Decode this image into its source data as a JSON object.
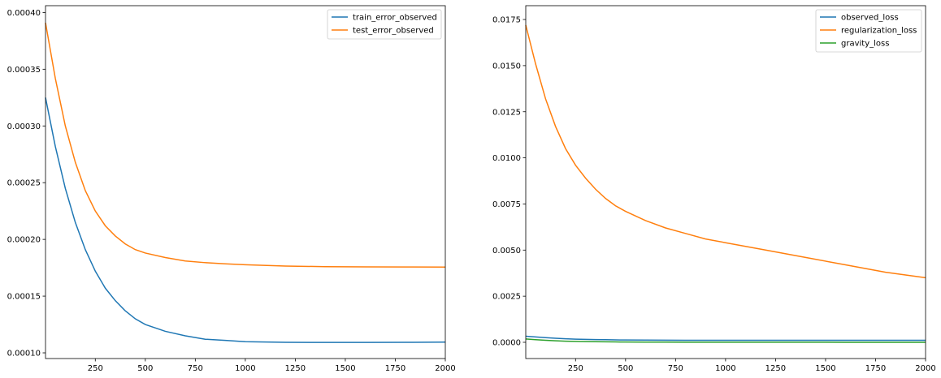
{
  "chart_data": [
    {
      "type": "line",
      "xlim": [
        1,
        2000
      ],
      "ylim": [
        9.5e-05,
        0.000406
      ],
      "x_ticks": [
        250,
        500,
        750,
        1000,
        1250,
        1500,
        1750,
        2000
      ],
      "x_tick_labels": [
        "250",
        "500",
        "750",
        "1000",
        "1250",
        "1500",
        "1750",
        "2000"
      ],
      "y_ticks": [
        0.0001,
        0.00015,
        0.0002,
        0.00025,
        0.0003,
        0.00035,
        0.0004
      ],
      "y_tick_labels": [
        "0.00010",
        "0.00015",
        "0.00020",
        "0.00025",
        "0.00030",
        "0.00035",
        "0.00040"
      ],
      "grid": false,
      "legend_position": "top-right",
      "x": [
        1,
        50,
        100,
        150,
        200,
        250,
        300,
        350,
        400,
        450,
        500,
        600,
        700,
        800,
        900,
        1000,
        1200,
        1400,
        1600,
        1800,
        2000
      ],
      "series": [
        {
          "name": "train_error_observed",
          "color": "#1f77b4",
          "values": [
            0.000325,
            0.000282,
            0.000245,
            0.000215,
            0.000191,
            0.000172,
            0.000157,
            0.000146,
            0.000137,
            0.00013,
            0.000125,
            0.000119,
            0.000115,
            0.000112,
            0.000111,
            0.0001098,
            0.0001093,
            0.0001092,
            0.0001092,
            0.0001093,
            0.0001095
          ]
        },
        {
          "name": "test_error_observed",
          "color": "#ff7f0e",
          "values": [
            0.000391,
            0.000342,
            0.0003,
            0.000268,
            0.000243,
            0.000225,
            0.000212,
            0.000203,
            0.000196,
            0.000191,
            0.000188,
            0.000184,
            0.000181,
            0.0001795,
            0.0001785,
            0.0001777,
            0.0001765,
            0.000176,
            0.0001758,
            0.0001757,
            0.0001756
          ]
        }
      ]
    },
    {
      "type": "line",
      "xlim": [
        1,
        2000
      ],
      "ylim": [
        -0.00088,
        0.01825
      ],
      "x_ticks": [
        250,
        500,
        750,
        1000,
        1250,
        1500,
        1750,
        2000
      ],
      "x_tick_labels": [
        "250",
        "500",
        "750",
        "1000",
        "1250",
        "1500",
        "1750",
        "2000"
      ],
      "y_ticks": [
        0,
        0.0025,
        0.005,
        0.0075,
        0.01,
        0.0125,
        0.015,
        0.0175
      ],
      "y_tick_labels": [
        "0.0000",
        "0.0025",
        "0.0050",
        "0.0075",
        "0.0100",
        "0.0125",
        "0.0150",
        "0.0175"
      ],
      "grid": false,
      "legend_position": "top-right",
      "x": [
        1,
        50,
        100,
        150,
        200,
        250,
        300,
        350,
        400,
        450,
        500,
        600,
        700,
        800,
        900,
        1000,
        1200,
        1400,
        1600,
        1800,
        2000
      ],
      "series": [
        {
          "name": "observed_loss",
          "color": "#1f77b4",
          "values": [
            0.00033,
            0.00029,
            0.00025,
            0.00022,
            0.00019,
            0.00017,
            0.00016,
            0.00015,
            0.00014,
            0.00013,
            0.000125,
            0.00012,
            0.000115,
            0.000112,
            0.00011,
            0.00011,
            0.00011,
            0.00011,
            0.00011,
            0.00011,
            0.00011
          ]
        },
        {
          "name": "regularization_loss",
          "color": "#ff7f0e",
          "values": [
            0.0172,
            0.0151,
            0.0132,
            0.0117,
            0.0105,
            0.0096,
            0.0089,
            0.0083,
            0.0078,
            0.0074,
            0.0071,
            0.0066,
            0.0062,
            0.0059,
            0.0056,
            0.0054,
            0.005,
            0.0046,
            0.0042,
            0.0038,
            0.0035
          ]
        },
        {
          "name": "gravity_loss",
          "color": "#2ca02c",
          "values": [
            0.00018,
            0.00014,
            0.00011,
            8e-05,
            6e-05,
            5e-05,
            4e-05,
            3e-05,
            2.5e-05,
            2e-05,
            1.5e-05,
            1e-05,
            8e-06,
            6e-06,
            5e-06,
            4e-06,
            3e-06,
            3e-06,
            2e-06,
            2e-06,
            2e-06
          ]
        }
      ]
    }
  ]
}
